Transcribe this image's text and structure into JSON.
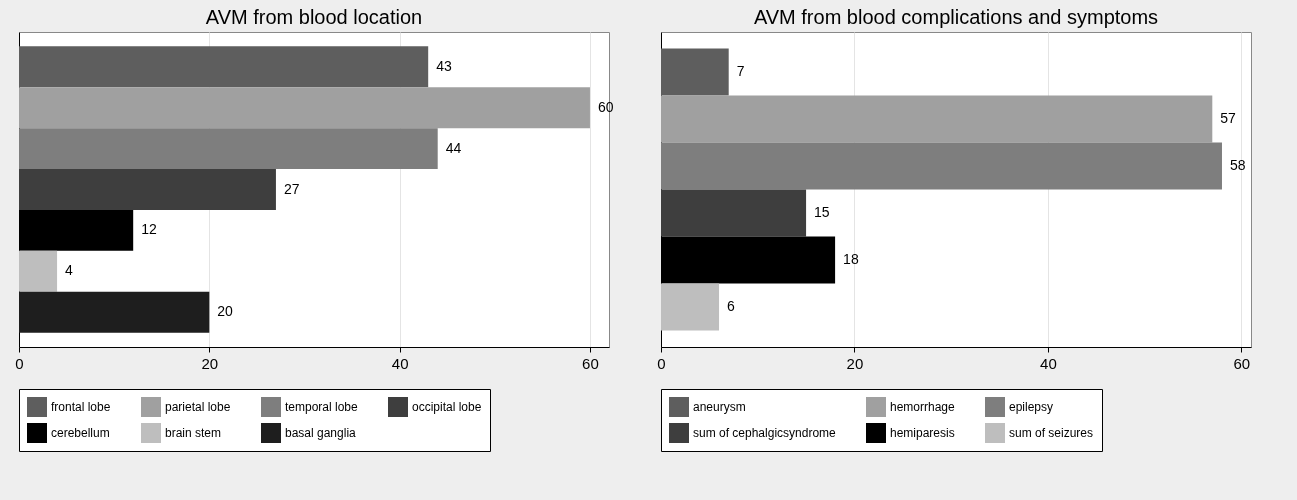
{
  "chart_data": [
    {
      "type": "bar",
      "orientation": "horizontal",
      "title": "AVM from blood location",
      "categories": [
        null,
        null,
        null,
        null,
        null,
        null,
        null
      ],
      "series": [
        {
          "name": "frontal lobe",
          "color": "#5e5e5e",
          "values": [
            43,
            null,
            null,
            null,
            null,
            null,
            null
          ]
        },
        {
          "name": "parietal lobe",
          "color": "#a0a0a0",
          "values": [
            null,
            60,
            null,
            null,
            null,
            null,
            null
          ]
        },
        {
          "name": "temporal lobe",
          "color": "#7e7e7e",
          "values": [
            null,
            null,
            44,
            null,
            null,
            null,
            null
          ]
        },
        {
          "name": "occipital lobe",
          "color": "#3e3e3e",
          "values": [
            null,
            null,
            null,
            27,
            null,
            null,
            null
          ]
        },
        {
          "name": "cerebellum",
          "color": "#000000",
          "values": [
            null,
            null,
            null,
            null,
            12,
            null,
            null
          ]
        },
        {
          "name": "brain stem",
          "color": "#bebebe",
          "values": [
            null,
            null,
            null,
            null,
            null,
            4,
            null
          ]
        },
        {
          "name": "basal ganglia",
          "color": "#1e1e1e",
          "values": [
            null,
            null,
            null,
            null,
            null,
            null,
            20
          ]
        }
      ],
      "xlim": [
        0,
        62
      ],
      "xticks": [
        0,
        20,
        40,
        60
      ],
      "grid": "x",
      "legend": "bottom",
      "data_labels": true
    },
    {
      "type": "bar",
      "orientation": "horizontal",
      "title": "AVM from blood complications and symptoms",
      "categories": [
        null,
        null,
        null,
        null,
        null,
        null
      ],
      "series": [
        {
          "name": "aneurysm",
          "color": "#5e5e5e",
          "values": [
            7,
            null,
            null,
            null,
            null,
            null
          ]
        },
        {
          "name": "hemorrhage",
          "color": "#a0a0a0",
          "values": [
            null,
            57,
            null,
            null,
            null,
            null
          ]
        },
        {
          "name": "epilepsy",
          "color": "#7e7e7e",
          "values": [
            null,
            null,
            58,
            null,
            null,
            null
          ]
        },
        {
          "name": "sum of cephalgicsyndrome",
          "color": "#3e3e3e",
          "values": [
            null,
            null,
            null,
            15,
            null,
            null
          ]
        },
        {
          "name": "hemiparesis",
          "color": "#000000",
          "values": [
            null,
            null,
            null,
            null,
            18,
            null
          ]
        },
        {
          "name": "sum of seizures",
          "color": "#bebebe",
          "values": [
            null,
            null,
            null,
            null,
            null,
            6
          ]
        }
      ],
      "xlim": [
        0,
        61
      ],
      "xticks": [
        0,
        20,
        40,
        60
      ],
      "grid": "x",
      "legend": "bottom",
      "data_labels": true
    }
  ]
}
